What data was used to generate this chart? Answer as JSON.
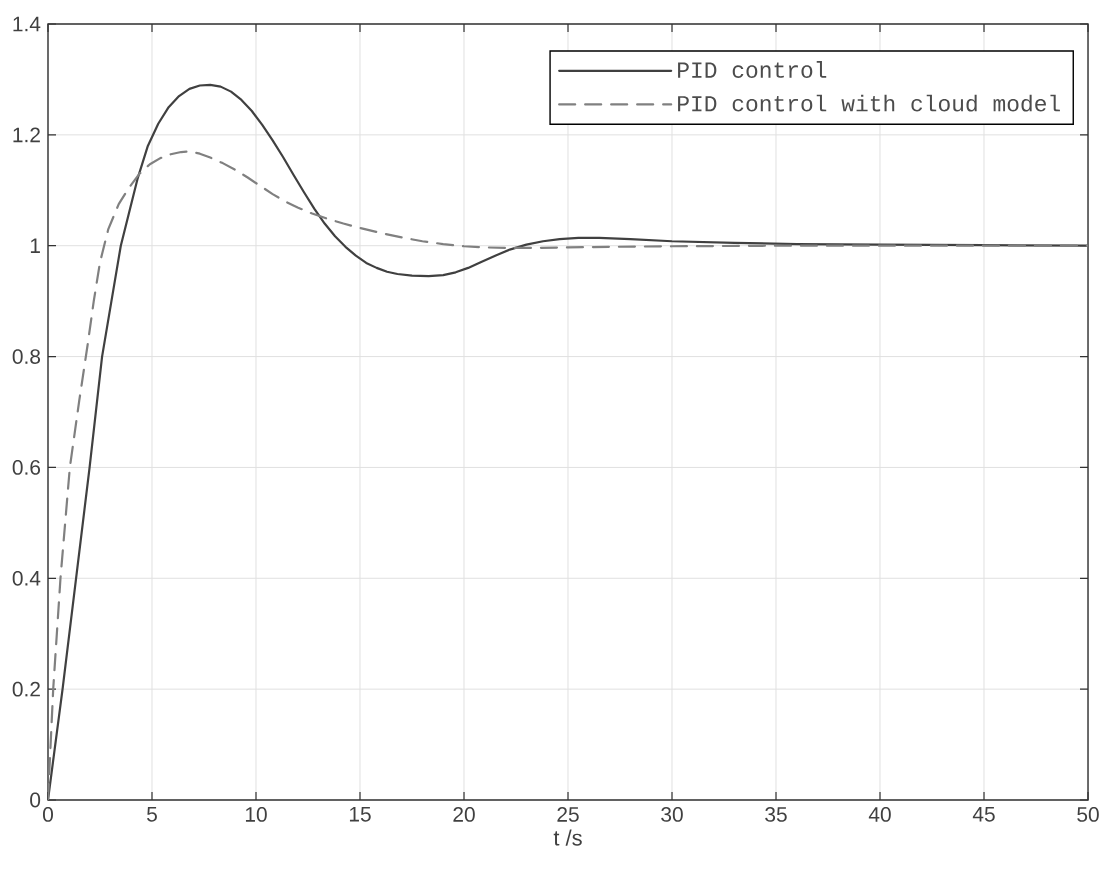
{
  "chart_data": {
    "type": "line",
    "xlabel": "t /s",
    "series": [
      {
        "name": "PID control",
        "color": "#404040",
        "line_style": "solid",
        "x": [
          0,
          0.7,
          1.35,
          2.0,
          2.6,
          3.05,
          3.5,
          3.9,
          4.3,
          4.8,
          5.3,
          5.8,
          6.3,
          6.8,
          7.3,
          7.8,
          8.3,
          8.8,
          9.3,
          9.8,
          10.3,
          10.8,
          11.3,
          11.8,
          12.3,
          12.8,
          13.3,
          13.8,
          14.3,
          14.8,
          15.3,
          15.8,
          16.3,
          16.8,
          17.5,
          18.3,
          19,
          19.6,
          20.2,
          20.8,
          21.5,
          22.2,
          23,
          23.8,
          24.6,
          25.5,
          26.5,
          28,
          30,
          33,
          36,
          40,
          45,
          50
        ],
        "values": [
          0,
          0.2,
          0.4,
          0.6,
          0.8,
          0.9,
          1.0,
          1.06,
          1.12,
          1.18,
          1.22,
          1.25,
          1.27,
          1.283,
          1.289,
          1.29,
          1.287,
          1.278,
          1.263,
          1.243,
          1.218,
          1.19,
          1.16,
          1.128,
          1.097,
          1.067,
          1.04,
          1.017,
          0.998,
          0.982,
          0.969,
          0.96,
          0.953,
          0.949,
          0.946,
          0.945,
          0.947,
          0.952,
          0.96,
          0.97,
          0.982,
          0.993,
          1.002,
          1.008,
          1.012,
          1.014,
          1.014,
          1.012,
          1.008,
          1.005,
          1.003,
          1.002,
          1.001,
          1.0
        ]
      },
      {
        "name": "PID control with cloud model",
        "color": "#808080",
        "line_style": "dashed",
        "x": [
          0,
          0.25,
          0.6,
          1.05,
          1.5,
          1.9,
          2.2,
          2.5,
          2.9,
          3.4,
          3.9,
          4.4,
          4.9,
          5.4,
          5.9,
          6.4,
          6.8,
          7.3,
          7.8,
          8.4,
          9.0,
          9.6,
          10.2,
          10.8,
          11.4,
          12.0,
          12.7,
          13.4,
          14.2,
          15,
          16,
          17,
          18,
          19,
          20,
          21,
          22,
          23.5,
          25,
          27,
          30,
          35,
          40,
          50
        ],
        "values": [
          0,
          0.2,
          0.4,
          0.6,
          0.72,
          0.82,
          0.9,
          0.97,
          1.03,
          1.075,
          1.105,
          1.13,
          1.147,
          1.158,
          1.165,
          1.169,
          1.17,
          1.166,
          1.159,
          1.149,
          1.137,
          1.123,
          1.108,
          1.093,
          1.08,
          1.069,
          1.058,
          1.049,
          1.04,
          1.032,
          1.023,
          1.015,
          1.008,
          1.003,
          0.999,
          0.997,
          0.996,
          0.996,
          0.997,
          0.998,
          0.999,
          1.0,
          1.0,
          1.0
        ]
      }
    ],
    "xlim": [
      0,
      50
    ],
    "ylim": [
      0,
      1.4
    ],
    "xticks": [
      0,
      5,
      10,
      15,
      20,
      25,
      30,
      35,
      40,
      45,
      50
    ],
    "yticks": [
      0,
      0.2,
      0.4,
      0.6,
      0.8,
      1,
      1.2,
      1.4
    ],
    "grid": true,
    "legend": "top right"
  }
}
